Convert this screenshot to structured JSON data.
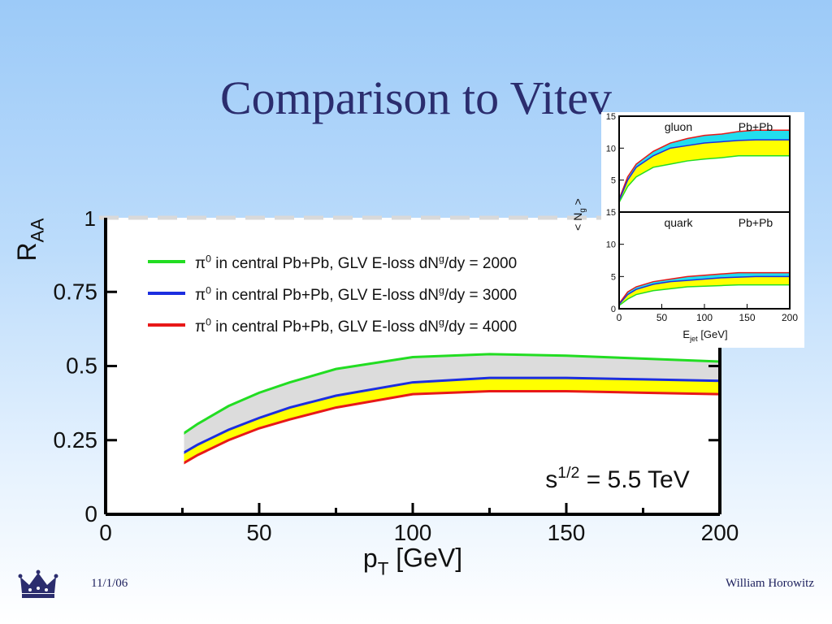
{
  "slide": {
    "title": "Comparison to Vitev",
    "footer_date": "11/1/06",
    "footer_author": "William Horowitz"
  },
  "colors": {
    "green": "#22dd22",
    "blue": "#1c2ee0",
    "red": "#e81818",
    "yellow_band": "#ffff00",
    "gray_band": "#dcdcdc",
    "cyan_band": "#22ddee",
    "title_text": "#2b2d6e"
  },
  "chart_data": [
    {
      "type": "line",
      "ylabel": "R",
      "ylabel_sub": "AA",
      "xlabel": "p",
      "xlabel_sub": "T",
      "xlabel_unit": " [GeV]",
      "xlim": [
        0,
        200
      ],
      "ylim": [
        0,
        1
      ],
      "xticks": [
        "0",
        "50",
        "100",
        "150",
        "200"
      ],
      "yticks": [
        "0",
        "0.25",
        "0.5",
        "0.75"
      ],
      "ytick_values": [
        0,
        0.25,
        0.5,
        0.75
      ],
      "top_tick_label": "1",
      "reference_line": {
        "y": 1,
        "style": "dashed",
        "color": "#d9d9d9"
      },
      "annotation": {
        "base": "s",
        "sup": "1/2",
        "rest": " = 5.5 TeV"
      },
      "legend_placement": "top-left",
      "legend": [
        {
          "prefix": "π",
          "sup": "0",
          "mid": " in central Pb+Pb, GLV E-loss dN",
          "sup2": "g",
          "end": "/dy = 2000",
          "color": "#22dd22"
        },
        {
          "prefix": "π",
          "sup": "0",
          "mid": " in central Pb+Pb, GLV E-loss dN",
          "sup2": "g",
          "end": "/dy = 3000",
          "color": "#1c2ee0"
        },
        {
          "prefix": "π",
          "sup": "0",
          "mid": " in central Pb+Pb, GLV E-loss dN",
          "sup2": "g",
          "end": "/dy = 4000",
          "color": "#e81818"
        }
      ],
      "x": [
        25,
        30,
        40,
        50,
        60,
        75,
        100,
        125,
        150,
        175,
        200
      ],
      "series": [
        {
          "name": "π0 in central Pb+Pb, GLV E-loss dNg/dy = 2000",
          "color": "#22dd22",
          "values": [
            0.27,
            0.305,
            0.365,
            0.41,
            0.445,
            0.49,
            0.53,
            0.54,
            0.535,
            0.525,
            0.515
          ]
        },
        {
          "name": "π0 in central Pb+Pb, GLV E-loss dNg/dy = 3000",
          "color": "#1c2ee0",
          "values": [
            0.205,
            0.235,
            0.285,
            0.325,
            0.36,
            0.4,
            0.445,
            0.46,
            0.46,
            0.455,
            0.45
          ]
        },
        {
          "name": "π0 in central Pb+Pb, GLV E-loss dNg/dy = 4000",
          "color": "#e81818",
          "values": [
            0.17,
            0.2,
            0.25,
            0.29,
            0.32,
            0.36,
            0.405,
            0.415,
            0.415,
            0.41,
            0.405
          ]
        }
      ],
      "bands": [
        {
          "between": [
            0,
            1
          ],
          "color": "#dcdcdc"
        },
        {
          "between": [
            1,
            2
          ],
          "color": "#ffff00"
        }
      ]
    },
    {
      "type": "area",
      "panel_label": "gluon",
      "system_label": "Pb+Pb",
      "ylabel": "< N",
      "ylabel_sub": "g",
      "ylabel_end": " >",
      "xlim": [
        0,
        200
      ],
      "ylim": [
        0,
        15
      ],
      "yticks": [
        "5",
        "10",
        "15"
      ],
      "ytick_values": [
        5,
        10,
        15
      ],
      "x": [
        0,
        10,
        20,
        40,
        60,
        80,
        100,
        120,
        140,
        160,
        180,
        200
      ],
      "series": [
        {
          "color": "#e81818",
          "values": [
            2,
            5.5,
            7.5,
            9.5,
            10.8,
            11.5,
            12,
            12.2,
            12.6,
            12.8,
            12.8,
            12.8
          ]
        },
        {
          "color": "#1c2ee0",
          "values": [
            1.8,
            5,
            7,
            8.8,
            10,
            10.4,
            10.8,
            11,
            11.2,
            11.3,
            11.3,
            11.3
          ]
        },
        {
          "color": "#22dd22",
          "values": [
            1.5,
            4,
            5.5,
            7,
            7.5,
            8,
            8.3,
            8.5,
            8.8,
            8.8,
            8.8,
            8.8
          ]
        }
      ],
      "bands": [
        {
          "between": [
            0,
            1
          ],
          "color": "#22ddee"
        },
        {
          "between": [
            1,
            2
          ],
          "color": "#ffff00"
        }
      ]
    },
    {
      "type": "area",
      "panel_label": "quark",
      "system_label": "Pb+Pb",
      "xlabel": "E",
      "xlabel_sub": "jet",
      "xlabel_unit": " [GeV]",
      "xlim": [
        0,
        200
      ],
      "ylim": [
        0,
        15
      ],
      "xticks": [
        "0",
        "50",
        "100",
        "150",
        "200"
      ],
      "yticks": [
        "0",
        "5",
        "10",
        "15"
      ],
      "ytick_values": [
        0,
        5,
        10,
        15
      ],
      "x": [
        0,
        10,
        20,
        40,
        60,
        80,
        100,
        120,
        140,
        160,
        180,
        200
      ],
      "series": [
        {
          "color": "#e81818",
          "values": [
            0.8,
            2.6,
            3.4,
            4.2,
            4.6,
            5,
            5.2,
            5.4,
            5.6,
            5.6,
            5.6,
            5.6
          ]
        },
        {
          "color": "#1c2ee0",
          "values": [
            0.7,
            2.2,
            3,
            3.8,
            4.2,
            4.4,
            4.6,
            4.8,
            4.9,
            5,
            5,
            5
          ]
        },
        {
          "color": "#22dd22",
          "values": [
            0.5,
            1.5,
            2.2,
            2.8,
            3.1,
            3.4,
            3.5,
            3.6,
            3.7,
            3.7,
            3.7,
            3.7
          ]
        }
      ],
      "bands": [
        {
          "between": [
            0,
            1
          ],
          "color": "#22ddee"
        },
        {
          "between": [
            1,
            2
          ],
          "color": "#ffff00"
        }
      ]
    }
  ]
}
